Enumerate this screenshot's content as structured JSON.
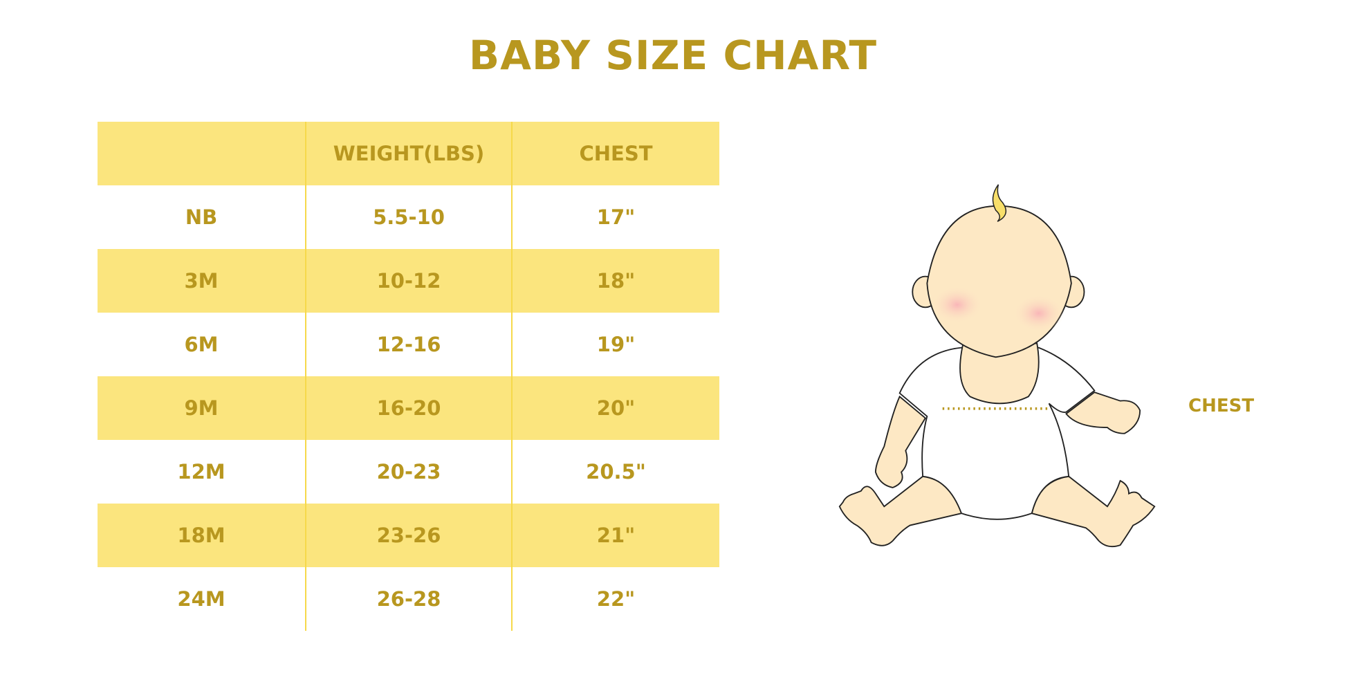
{
  "title": "BABY SIZE CHART",
  "table": {
    "headers": [
      "",
      "WEIGHT(LBS)",
      "CHEST"
    ],
    "rows": [
      [
        "NB",
        "5.5-10",
        "17\""
      ],
      [
        "3M",
        "10-12",
        "18\""
      ],
      [
        "6M",
        "12-16",
        "19\""
      ],
      [
        "9M",
        "16-20",
        "20\""
      ],
      [
        "12M",
        "20-23",
        "20.5\""
      ],
      [
        "18M",
        "23-26",
        "21\""
      ],
      [
        "24M",
        "26-28",
        "22\""
      ]
    ]
  },
  "illustration": {
    "chest_label": "CHEST"
  },
  "colors": {
    "accent": "#b8971f",
    "band": "#fbe57e",
    "skin": "#fde8c4",
    "cheek": "#f9b6b8"
  }
}
